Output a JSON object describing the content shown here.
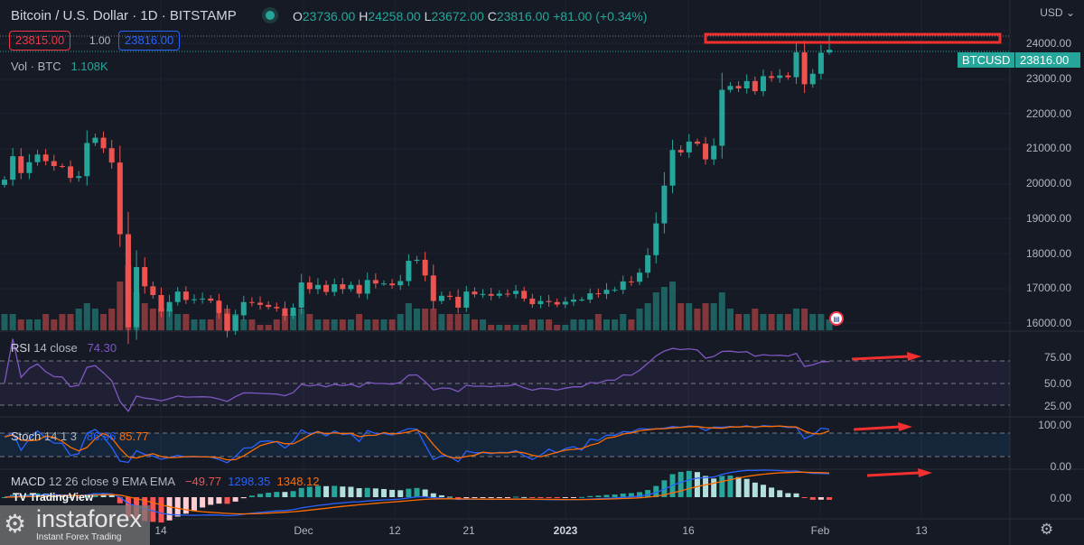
{
  "header": {
    "symbol": "Bitcoin / U.S. Dollar · 1D · BITSTAMP",
    "o_label": "O",
    "o": "23736.00",
    "h_label": "H",
    "h": "24258.00",
    "l_label": "L",
    "l": "23672.00",
    "c_label": "C",
    "c": "23816.00",
    "change": "+81.00 (+0.34%)"
  },
  "trade": {
    "sell": "23815.00",
    "spread": "1.00",
    "buy": "23816.00"
  },
  "volume_legend": {
    "label": "Vol · BTC",
    "value": "1.108K"
  },
  "price_axis": {
    "currency": "USD",
    "labels": [
      "24000.00",
      "23000.00",
      "22000.00",
      "21000.00",
      "20000.00",
      "19000.00",
      "18000.00",
      "17000.00",
      "16000.00"
    ],
    "symbol_tag": "BTCUSD",
    "last_price": "23816.00"
  },
  "rsi": {
    "title": "RSI",
    "params": "14 close",
    "value": "74.30",
    "levels": [
      "75.00",
      "50.00",
      "25.00"
    ]
  },
  "stoch": {
    "title": "Stoch",
    "params": "14 1 3",
    "k": "86.96",
    "d": "85.77",
    "levels": [
      "100.00",
      "0.00"
    ]
  },
  "macd": {
    "title": "MACD",
    "params": "12 26 close 9 EMA EMA",
    "hist": "−49.77",
    "macd": "1298.35",
    "signal": "1348.12",
    "levels": [
      "0.00"
    ]
  },
  "time_axis": [
    "14",
    "Dec",
    "12",
    "21",
    "2023",
    "16",
    "Feb",
    "13"
  ],
  "watermark": {
    "tradingview": "TradingView",
    "brand": "instaforex",
    "tagline": "Instant Forex Trading"
  },
  "colors": {
    "up": "#26a69a",
    "down": "#ef5350",
    "rsi": "#7e57c2",
    "stoch_k": "#2962ff",
    "stoch_d": "#ff6d00",
    "annotation": "#f23030"
  },
  "chart_data": {
    "type": "candlestick",
    "start_date": "2022-10-25",
    "closes": [
      20100,
      20770,
      20290,
      20600,
      20820,
      20630,
      20490,
      20480,
      20150,
      20200,
      21150,
      21300,
      21000,
      20590,
      18540,
      15880,
      17600,
      17050,
      16800,
      16330,
      16600,
      16900,
      16660,
      16680,
      16700,
      16640,
      16270,
      15780,
      16220,
      16600,
      16580,
      16520,
      16460,
      16420,
      16210,
      16440,
      17160,
      16970,
      17090,
      16890,
      17110,
      16970,
      17090,
      16840,
      17230,
      17130,
      17130,
      17080,
      17200,
      17780,
      17810,
      17360,
      16630,
      16780,
      16750,
      16440,
      16900,
      16820,
      16830,
      16780,
      16840,
      16830,
      16920,
      16700,
      16540,
      16630,
      16600,
      16530,
      16610,
      16670,
      16670,
      16850,
      16830,
      16950,
      16950,
      17190,
      17180,
      17440,
      17940,
      18850,
      19930,
      20950,
      20880,
      21190,
      21130,
      20680,
      21070,
      22670,
      22780,
      22710,
      22920,
      22630,
      23060,
      23010,
      23080,
      23030,
      23740,
      22830,
      23130,
      23730,
      23816
    ],
    "volumes": [
      3,
      3,
      2,
      2,
      2,
      3,
      2,
      3,
      3,
      4,
      5,
      4,
      3,
      4,
      9,
      12,
      7,
      5,
      4,
      4,
      4,
      3,
      3,
      2,
      2,
      2,
      3,
      4,
      3,
      2,
      2,
      1,
      1,
      2,
      3,
      3,
      4,
      3,
      2,
      2,
      2,
      2,
      2,
      3,
      2,
      2,
      2,
      2,
      3,
      5,
      4,
      4,
      4,
      3,
      3,
      3,
      3,
      2,
      2,
      1,
      1,
      1,
      1,
      1,
      2,
      2,
      2,
      1,
      1,
      2,
      2,
      2,
      3,
      2,
      2,
      3,
      2,
      4,
      5,
      7,
      8,
      9,
      5,
      5,
      4,
      5,
      5,
      7,
      4,
      3,
      3,
      4,
      3,
      3,
      3,
      3,
      4,
      4,
      3,
      3,
      2
    ],
    "ylim": [
      16000,
      24000
    ]
  }
}
